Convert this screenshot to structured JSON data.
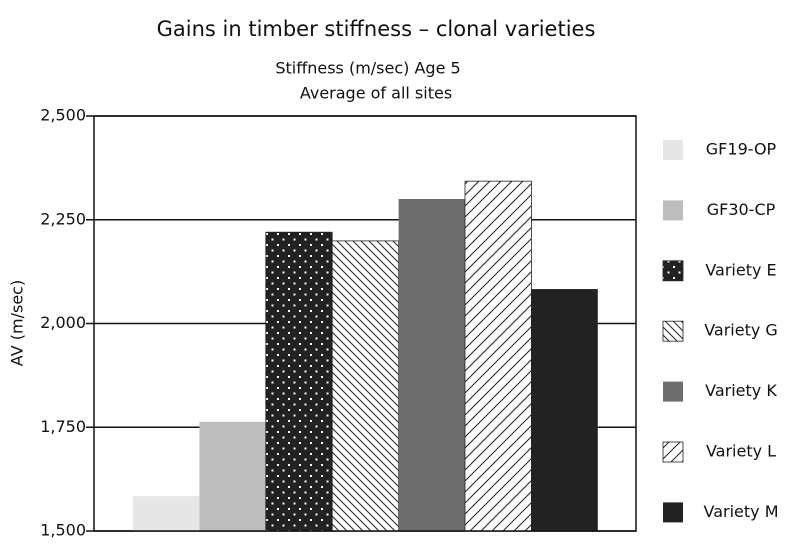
{
  "chart_data": {
    "type": "bar",
    "title": "Gains in timber stiffness – clonal varieties",
    "subtitle": [
      "Stiffness (m/sec) Age 5",
      "Average of all sites"
    ],
    "y_label": "AV (m/sec)",
    "categories": [
      null
    ],
    "series": [
      {
        "name": "GF19-OP",
        "color": "#e6e6e6",
        "pattern": "solid",
        "values": [
          1584
        ]
      },
      {
        "name": "GF30-CP",
        "color": "#bdbdbd",
        "pattern": "solid",
        "values": [
          1763
        ]
      },
      {
        "name": "Variety E",
        "color": "#222222",
        "pattern": "dots",
        "values": [
          2220
        ]
      },
      {
        "name": "Variety G",
        "color": "#222222",
        "pattern": "back-hatch",
        "values": [
          2199
        ]
      },
      {
        "name": "Variety K",
        "color": "#6e6e6e",
        "pattern": "solid",
        "values": [
          2300
        ]
      },
      {
        "name": "Variety L",
        "color": "#222222",
        "pattern": "hatch",
        "values": [
          2343
        ]
      },
      {
        "name": "Variety M",
        "color": "#222222",
        "pattern": "solid",
        "values": [
          2083
        ]
      }
    ],
    "ylim": [
      1500,
      2500
    ],
    "yticks": [
      {
        "value": 1500,
        "label": "1,500"
      },
      {
        "value": 1750,
        "label": "1,750"
      },
      {
        "value": 2000,
        "label": "2,000"
      },
      {
        "value": 2250,
        "label": "2,250"
      },
      {
        "value": 2500,
        "label": "2,500"
      }
    ],
    "grid": true,
    "legend": "right"
  }
}
